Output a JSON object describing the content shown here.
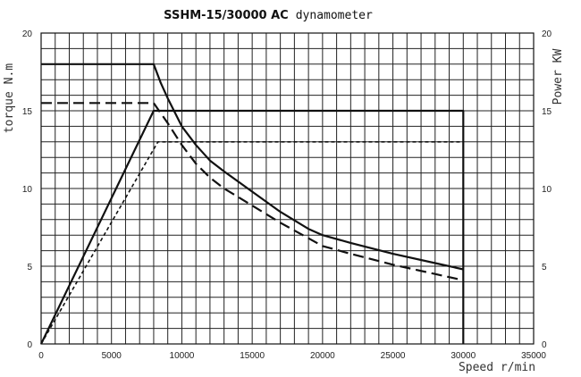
{
  "chart_data": {
    "type": "line",
    "title_bold": "SSHM-15/30000 AC",
    "title_rest": "dynamometer",
    "xlabel": "Speed r/min",
    "ylabel_left": "torque N.m",
    "ylabel_right": "Power KW",
    "xlim": [
      0,
      35000
    ],
    "ylim": [
      0,
      20
    ],
    "ylim_right": [
      0,
      20
    ],
    "x_ticks": [
      0,
      5000,
      10000,
      15000,
      20000,
      25000,
      30000,
      35000
    ],
    "y_ticks": [
      0,
      5,
      10,
      15,
      20
    ],
    "y_ticks_right": [
      0,
      5,
      10,
      15,
      20
    ],
    "grid": true,
    "x_grid_step": 1000,
    "y_grid_step": 1,
    "series": [
      {
        "style": "solid",
        "color": "#111111",
        "points": [
          [
            0,
            18
          ],
          [
            8000,
            18
          ],
          [
            8500,
            16.8
          ],
          [
            9000,
            15.8
          ],
          [
            10000,
            14
          ],
          [
            11000,
            12.8
          ],
          [
            12000,
            11.8
          ],
          [
            13000,
            11.1
          ],
          [
            15000,
            9.8
          ],
          [
            17000,
            8.5
          ],
          [
            19000,
            7.4
          ],
          [
            20000,
            7.0
          ],
          [
            22000,
            6.5
          ],
          [
            25000,
            5.8
          ],
          [
            28000,
            5.2
          ],
          [
            30000,
            4.8
          ]
        ]
      },
      {
        "style": "solid",
        "color": "#111111",
        "points": [
          [
            0,
            0
          ],
          [
            8000,
            15
          ],
          [
            30000,
            15
          ],
          [
            30000,
            0
          ]
        ]
      },
      {
        "style": "dashed",
        "color": "#111111",
        "points": [
          [
            0,
            15.5
          ],
          [
            8000,
            15.5
          ],
          [
            9000,
            14.2
          ],
          [
            10000,
            12.8
          ],
          [
            11000,
            11.6
          ],
          [
            12000,
            10.7
          ],
          [
            13000,
            10.0
          ],
          [
            15000,
            8.9
          ],
          [
            17000,
            7.8
          ],
          [
            19000,
            6.8
          ],
          [
            20000,
            6.3
          ],
          [
            22000,
            5.8
          ],
          [
            25000,
            5.1
          ],
          [
            28000,
            4.5
          ],
          [
            30000,
            4.1
          ]
        ]
      },
      {
        "style": "dotted",
        "color": "#111111",
        "points": [
          [
            0,
            0
          ],
          [
            8300,
            13
          ],
          [
            30000,
            13
          ]
        ]
      }
    ]
  }
}
